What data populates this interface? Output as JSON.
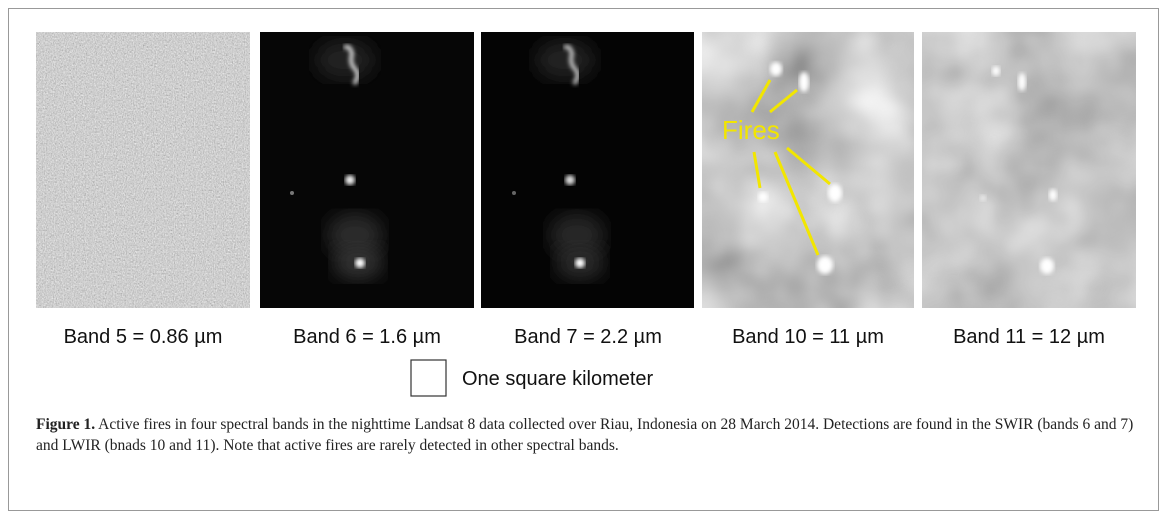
{
  "figure": {
    "panels": [
      {
        "label": "Band 5 = 0.86 µm"
      },
      {
        "label": "Band 6 = 1.6 µm"
      },
      {
        "label": "Band 7 = 2.2 µm"
      },
      {
        "label": "Band 10 = 11 µm"
      },
      {
        "label": "Band 11 = 12 µm"
      }
    ],
    "annotation": "Fires",
    "scale_label": "One square kilometer",
    "caption": {
      "label": "Figure 1.",
      "text": " Active fires in four spectral bands in the nighttime Landsat 8 data collected over Riau, Indonesia on 28 March 2014. Detections are found in the SWIR (bands 6 and 7) and LWIR (bnads 10 and 11). Note that active fires are rarely detected in other spectral bands."
    }
  }
}
